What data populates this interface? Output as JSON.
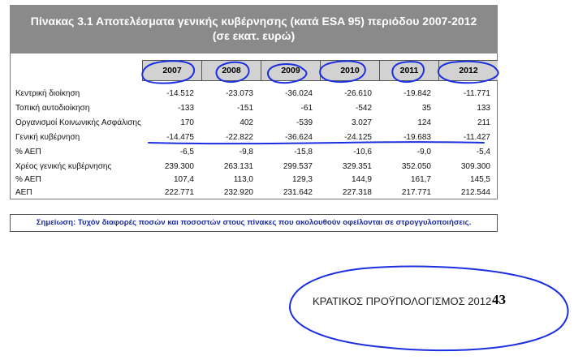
{
  "title": {
    "line1": "Πίνακας 3.1  Αποτελέσματα γενικής κυβέρνησης (κατά ESA 95) περιόδου 2007-2012",
    "line2": "(σε εκατ. ευρώ)"
  },
  "years": [
    "2007",
    "2008",
    "2009",
    "2010",
    "2011",
    "2012"
  ],
  "rows": [
    {
      "label": "Κεντρική διοίκηση",
      "values": [
        "-14.512",
        "-23.073",
        "-36.024",
        "-26.610",
        "-19.842",
        "-11.771"
      ]
    },
    {
      "label": "Τοπική αυτοδιοίκηση",
      "values": [
        "-133",
        "-151",
        "-61",
        "-542",
        "35",
        "133"
      ]
    },
    {
      "label": "Οργανισμοί Κοινωνικής Ασφάλισης",
      "values": [
        "170",
        "402",
        "-539",
        "3.027",
        "124",
        "211"
      ]
    },
    {
      "label": "Γενική κυβέρνηση",
      "values": [
        "-14.475",
        "-22.822",
        "-36.624",
        "-24.125",
        "-19.683",
        "-11.427"
      ]
    },
    {
      "label": "% ΑΕΠ",
      "values": [
        "-6,5",
        "-9,8",
        "-15,8",
        "-10,6",
        "-9,0",
        "-5,4"
      ]
    },
    {
      "label": "Χρέος γενικής κυβέρνησης",
      "values": [
        "239.300",
        "263.131",
        "299.537",
        "329.351",
        "352.050",
        "309.300"
      ]
    },
    {
      "label": "% ΑΕΠ",
      "values": [
        "107,4",
        "113,0",
        "129,3",
        "144,9",
        "161,7",
        "145,5"
      ]
    },
    {
      "label": "ΑΕΠ",
      "values": [
        "222.771",
        "232.920",
        "231.642",
        "227.318",
        "217.771",
        "212.544"
      ]
    }
  ],
  "note": "Σημείωση:  Τυχόν διαφορές ποσών και ποσοστών στους πίνακες που ακολουθούν οφείλονται σε στρογγυλοποιήσεις.",
  "footer": {
    "text": "ΚΡΑΤΙΚΟΣ ΠΡΟΫΠΟΛΟΓΙΣΜΟΣ 2012",
    "page": "43"
  },
  "colors": {
    "title_bg": "#8a8a8a",
    "header_bg": "#d2d2d2",
    "note_text": "#1a2aa0",
    "annotation_ink": "#1c2fe0"
  }
}
